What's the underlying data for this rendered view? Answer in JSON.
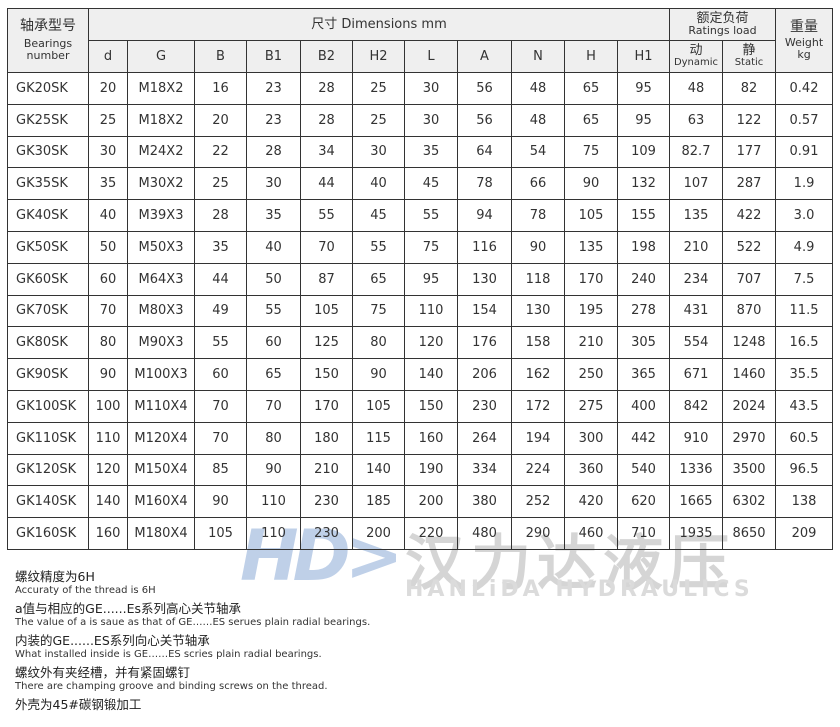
{
  "header": {
    "model_cn": "轴承型号",
    "model_en": "Bearings number",
    "dims": "尺寸 Dimensions mm",
    "ratings_cn": "额定负荷",
    "ratings_en": "Ratings load",
    "weight_cn": "重量",
    "weight_en": "Weight",
    "weight_unit": "kg",
    "cols": [
      "d",
      "G",
      "B",
      "B1",
      "B2",
      "H2",
      "L",
      "A",
      "N",
      "H",
      "H1"
    ],
    "dyn_cn": "动",
    "dyn_en": "Dynamic",
    "sta_cn": "静",
    "sta_en": "Static"
  },
  "rows": [
    [
      "GK20SK",
      "20",
      "M18X2",
      "16",
      "23",
      "28",
      "25",
      "30",
      "56",
      "48",
      "65",
      "95",
      "48",
      "82",
      "0.42"
    ],
    [
      "GK25SK",
      "25",
      "M18X2",
      "20",
      "23",
      "28",
      "25",
      "30",
      "56",
      "48",
      "65",
      "95",
      "63",
      "122",
      "0.57"
    ],
    [
      "GK30SK",
      "30",
      "M24X2",
      "22",
      "28",
      "34",
      "30",
      "35",
      "64",
      "54",
      "75",
      "109",
      "82.7",
      "177",
      "0.91"
    ],
    [
      "GK35SK",
      "35",
      "M30X2",
      "25",
      "30",
      "44",
      "40",
      "45",
      "78",
      "66",
      "90",
      "132",
      "107",
      "287",
      "1.9"
    ],
    [
      "GK40SK",
      "40",
      "M39X3",
      "28",
      "35",
      "55",
      "45",
      "55",
      "94",
      "78",
      "105",
      "155",
      "135",
      "422",
      "3.0"
    ],
    [
      "GK50SK",
      "50",
      "M50X3",
      "35",
      "40",
      "70",
      "55",
      "75",
      "116",
      "90",
      "135",
      "198",
      "210",
      "522",
      "4.9"
    ],
    [
      "GK60SK",
      "60",
      "M64X3",
      "44",
      "50",
      "87",
      "65",
      "95",
      "130",
      "118",
      "170",
      "240",
      "234",
      "707",
      "7.5"
    ],
    [
      "GK70SK",
      "70",
      "M80X3",
      "49",
      "55",
      "105",
      "75",
      "110",
      "154",
      "130",
      "195",
      "278",
      "431",
      "870",
      "11.5"
    ],
    [
      "GK80SK",
      "80",
      "M90X3",
      "55",
      "60",
      "125",
      "80",
      "120",
      "176",
      "158",
      "210",
      "305",
      "554",
      "1248",
      "16.5"
    ],
    [
      "GK90SK",
      "90",
      "M100X3",
      "60",
      "65",
      "150",
      "90",
      "140",
      "206",
      "162",
      "250",
      "365",
      "671",
      "1460",
      "35.5"
    ],
    [
      "GK100SK",
      "100",
      "M110X4",
      "70",
      "70",
      "170",
      "105",
      "150",
      "230",
      "172",
      "275",
      "400",
      "842",
      "2024",
      "43.5"
    ],
    [
      "GK110SK",
      "110",
      "M120X4",
      "70",
      "80",
      "180",
      "115",
      "160",
      "264",
      "194",
      "300",
      "442",
      "910",
      "2970",
      "60.5"
    ],
    [
      "GK120SK",
      "120",
      "M150X4",
      "85",
      "90",
      "210",
      "140",
      "190",
      "334",
      "224",
      "360",
      "540",
      "1336",
      "3500",
      "96.5"
    ],
    [
      "GK140SK",
      "140",
      "M160X4",
      "90",
      "110",
      "230",
      "185",
      "200",
      "380",
      "252",
      "420",
      "620",
      "1665",
      "6302",
      "138"
    ],
    [
      "GK160SK",
      "160",
      "M180X4",
      "105",
      "110",
      "230",
      "200",
      "220",
      "480",
      "290",
      "460",
      "710",
      "1935",
      "8650",
      "209"
    ]
  ],
  "notes": [
    {
      "cn": "螺纹精度为6H",
      "en": "Accuraty of the thread is 6H"
    },
    {
      "cn": "a值与相应的GE......Es系列高心关节轴承",
      "en": "The value of a is saue as that of GE……ES  serues plain radial bearings."
    },
    {
      "cn": "内装的GE......ES系列向心关节轴承",
      "en": "What installed inside is GE……ES  scries plain radial bearings."
    },
    {
      "cn": "螺纹外有夹经槽，并有紧固螺钉",
      "en": "There are champing groove and binding screws on the thread."
    },
    {
      "cn": "外壳为45#碳钢锻加工",
      "en": ""
    }
  ],
  "watermark": {
    "logo": "HD",
    "cn": "汉力达液压",
    "en": "HANLiDA HYDRAULICS"
  }
}
